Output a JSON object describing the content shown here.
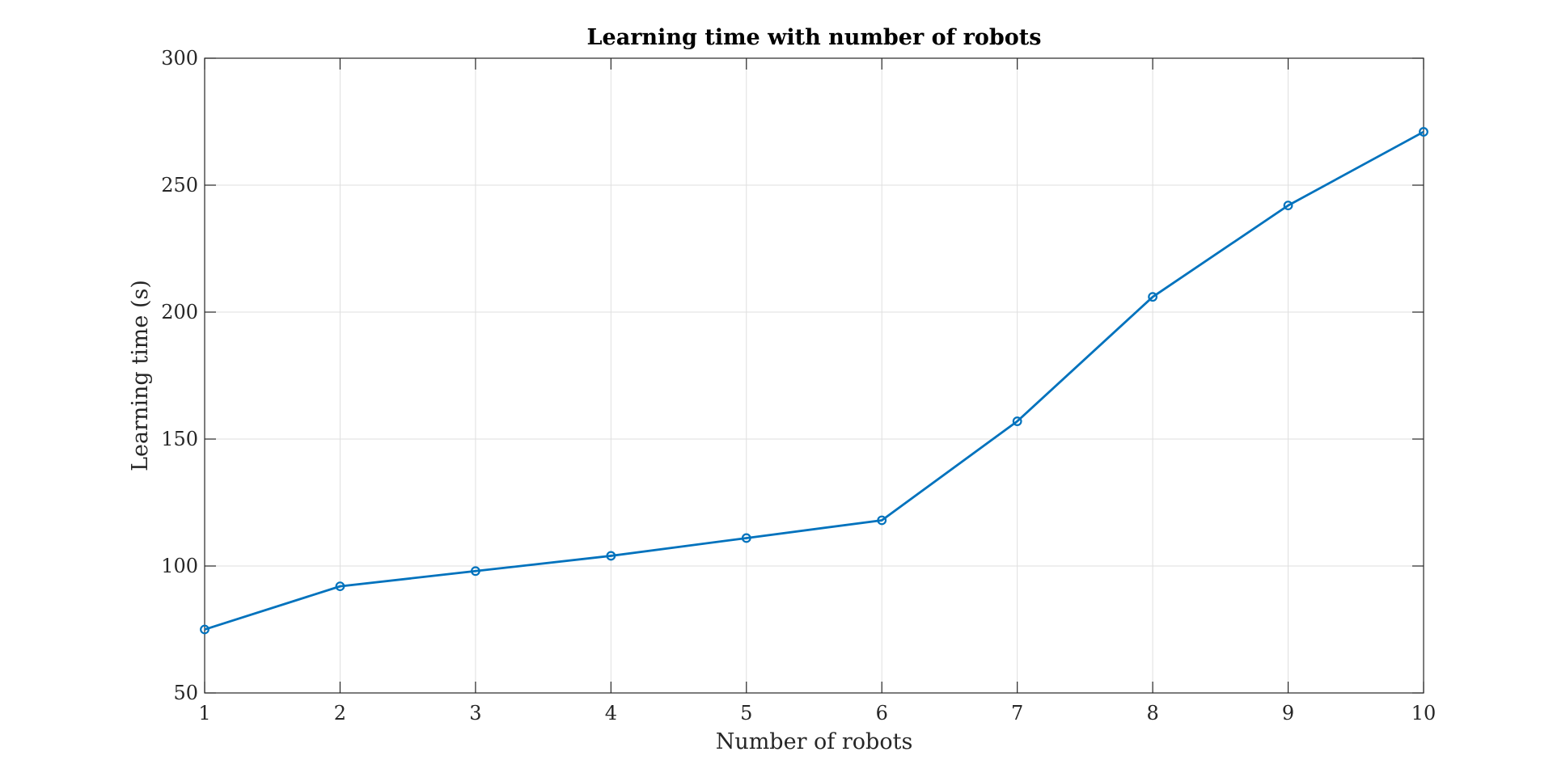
{
  "chart_data": {
    "type": "line",
    "title": "Learning time with number of robots",
    "xlabel": "Number of robots",
    "ylabel": "Learning time (s)",
    "x": [
      1,
      2,
      3,
      4,
      5,
      6,
      7,
      8,
      9,
      10
    ],
    "series": [
      {
        "values": [
          75,
          92,
          98,
          104,
          111,
          118,
          157,
          206,
          242,
          271
        ],
        "color": "#0072bd",
        "marker": "circle"
      }
    ],
    "xlim": [
      1,
      10
    ],
    "ylim": [
      50,
      300
    ],
    "xticks": [
      1,
      2,
      3,
      4,
      5,
      6,
      7,
      8,
      9,
      10
    ],
    "yticks": [
      50,
      100,
      150,
      200,
      250,
      300
    ],
    "grid": true,
    "legend": "none"
  }
}
